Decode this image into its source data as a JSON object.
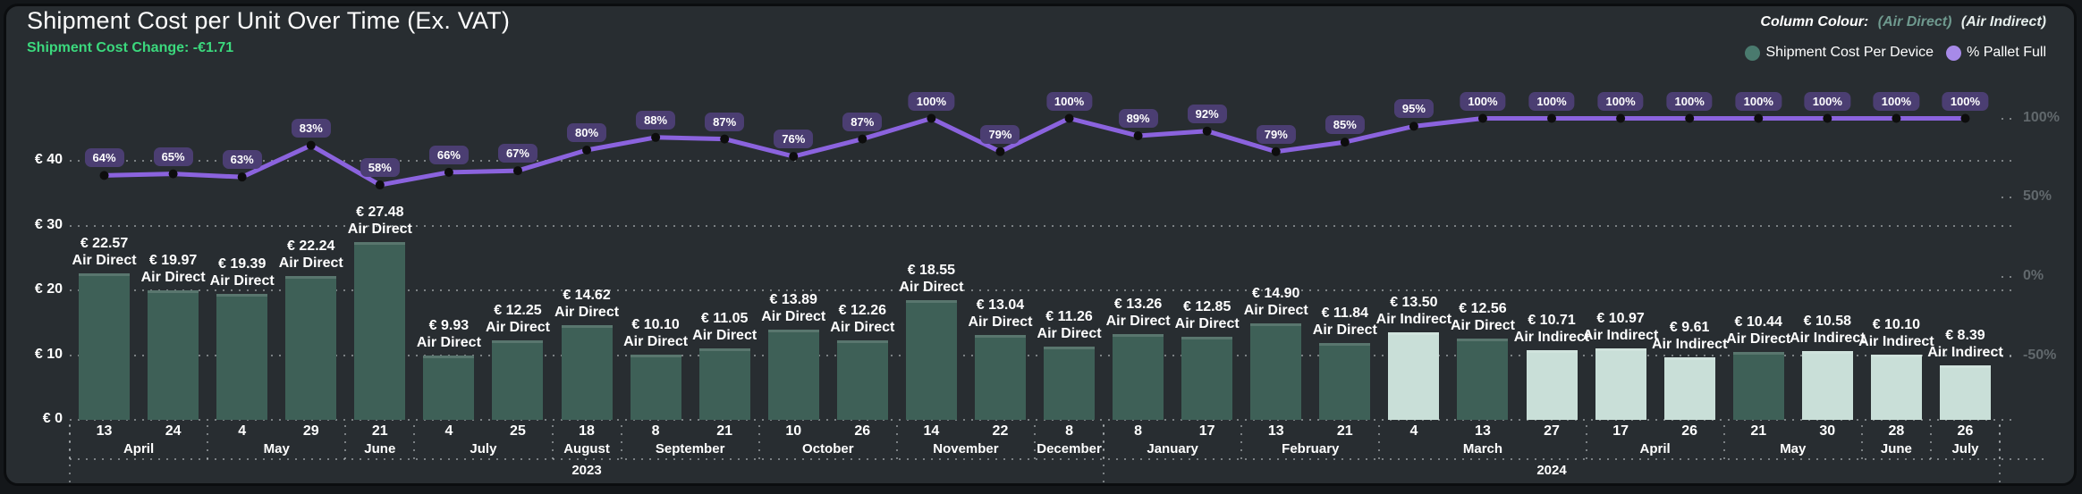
{
  "header": {
    "title": "Shipment Cost per Unit Over Time (Ex. VAT)",
    "subtitle": "Shipment Cost Change: -€1.71"
  },
  "column_colour": {
    "label": "Column Colour:",
    "direct_label": "(Air Direct)",
    "indirect_label": "(Air Indirect)"
  },
  "legend": {
    "cost_label": "Shipment Cost Per Device",
    "pallet_label": "% Pallet Full"
  },
  "colors": {
    "air_direct": "#3e6057",
    "air_indirect": "#c9dfd8",
    "bar_top_edge": "rgba(255,255,255,0.14)",
    "line": "#8b63de",
    "marker": "#0d0d0d",
    "badge_bg": "#4b3e72",
    "accent_green": "#3bd97d",
    "legend_cost_dot": "#4a7a6e",
    "legend_pallet_dot": "#a78ae8",
    "grid_dot": "rgba(205,210,213,0.5)",
    "right_axis_text": "#61686c",
    "panel_bg": "#282d31"
  },
  "chart_data": {
    "type": "bar+line",
    "title": "Shipment Cost per Unit Over Time (Ex. VAT)",
    "series": [
      {
        "name": "Shipment Cost Per Device",
        "type": "bar",
        "axis": "left"
      },
      {
        "name": "% Pallet Full",
        "type": "line",
        "axis": "right"
      }
    ],
    "left_axis": {
      "ticks": [
        0,
        10,
        20,
        30,
        40
      ],
      "tick_labels": [
        "€ 0",
        "€ 10",
        "€ 20",
        "€ 30",
        "€ 40"
      ],
      "range": [
        0,
        40
      ],
      "grid": "dotted"
    },
    "right_axis": {
      "ticks": [
        -50,
        0,
        50,
        100
      ],
      "tick_labels": [
        "-50%",
        "0%",
        "50%",
        "100%"
      ],
      "range": [
        -50,
        100
      ]
    },
    "currency_prefix": "€ ",
    "points": [
      {
        "day": "13",
        "month": "April",
        "year": "2023",
        "cost": 22.57,
        "type": "Air Direct",
        "pallet_pct": 64
      },
      {
        "day": "24",
        "month": "April",
        "year": "2023",
        "cost": 19.97,
        "type": "Air Direct",
        "pallet_pct": 65
      },
      {
        "day": "4",
        "month": "May",
        "year": "2023",
        "cost": 19.39,
        "type": "Air Direct",
        "pallet_pct": 63
      },
      {
        "day": "29",
        "month": "May",
        "year": "2023",
        "cost": 22.24,
        "type": "Air Direct",
        "pallet_pct": 83
      },
      {
        "day": "21",
        "month": "June",
        "year": "2023",
        "cost": 27.48,
        "type": "Air Direct",
        "pallet_pct": 58
      },
      {
        "day": "4",
        "month": "July",
        "year": "2023",
        "cost": 9.93,
        "type": "Air Direct",
        "pallet_pct": 66
      },
      {
        "day": "25",
        "month": "July",
        "year": "2023",
        "cost": 12.25,
        "type": "Air Direct",
        "pallet_pct": 67
      },
      {
        "day": "18",
        "month": "August",
        "year": "2023",
        "cost": 14.62,
        "type": "Air Direct",
        "pallet_pct": 80
      },
      {
        "day": "8",
        "month": "September",
        "year": "2023",
        "cost": 10.1,
        "type": "Air Direct",
        "pallet_pct": 88
      },
      {
        "day": "21",
        "month": "September",
        "year": "2023",
        "cost": 11.05,
        "type": "Air Direct",
        "pallet_pct": 87
      },
      {
        "day": "10",
        "month": "October",
        "year": "2023",
        "cost": 13.89,
        "type": "Air Direct",
        "pallet_pct": 76
      },
      {
        "day": "26",
        "month": "October",
        "year": "2023",
        "cost": 12.26,
        "type": "Air Direct",
        "pallet_pct": 87
      },
      {
        "day": "14",
        "month": "November",
        "year": "2023",
        "cost": 18.55,
        "type": "Air Direct",
        "pallet_pct": 100
      },
      {
        "day": "22",
        "month": "November",
        "year": "2023",
        "cost": 13.04,
        "type": "Air Direct",
        "pallet_pct": 79
      },
      {
        "day": "8",
        "month": "December",
        "year": "2023",
        "cost": 11.26,
        "type": "Air Direct",
        "pallet_pct": 100
      },
      {
        "day": "8",
        "month": "January",
        "year": "2024",
        "cost": 13.26,
        "type": "Air Direct",
        "pallet_pct": 89
      },
      {
        "day": "17",
        "month": "January",
        "year": "2024",
        "cost": 12.85,
        "type": "Air Direct",
        "pallet_pct": 92
      },
      {
        "day": "13",
        "month": "February",
        "year": "2024",
        "cost": 14.9,
        "type": "Air Direct",
        "pallet_pct": 79
      },
      {
        "day": "21",
        "month": "February",
        "year": "2024",
        "cost": 11.84,
        "type": "Air Direct",
        "pallet_pct": 85
      },
      {
        "day": "4",
        "month": "March",
        "year": "2024",
        "cost": 13.5,
        "type": "Air Indirect",
        "pallet_pct": 95
      },
      {
        "day": "13",
        "month": "March",
        "year": "2024",
        "cost": 12.56,
        "type": "Air Direct",
        "pallet_pct": 100
      },
      {
        "day": "27",
        "month": "March",
        "year": "2024",
        "cost": 10.71,
        "type": "Air Indirect",
        "pallet_pct": 100
      },
      {
        "day": "17",
        "month": "April",
        "year": "2024",
        "cost": 10.97,
        "type": "Air Indirect",
        "pallet_pct": 100
      },
      {
        "day": "26",
        "month": "April",
        "year": "2024",
        "cost": 9.61,
        "type": "Air Indirect",
        "pallet_pct": 100
      },
      {
        "day": "21",
        "month": "May",
        "year": "2024",
        "cost": 10.44,
        "type": "Air Direct",
        "pallet_pct": 100
      },
      {
        "day": "30",
        "month": "May",
        "year": "2024",
        "cost": 10.58,
        "type": "Air Indirect",
        "pallet_pct": 100
      },
      {
        "day": "28",
        "month": "June",
        "year": "2024",
        "cost": 10.1,
        "type": "Air Indirect",
        "pallet_pct": 100
      },
      {
        "day": "26",
        "month": "July",
        "year": "2024",
        "cost": 8.39,
        "type": "Air Indirect",
        "pallet_pct": 100
      }
    ]
  }
}
